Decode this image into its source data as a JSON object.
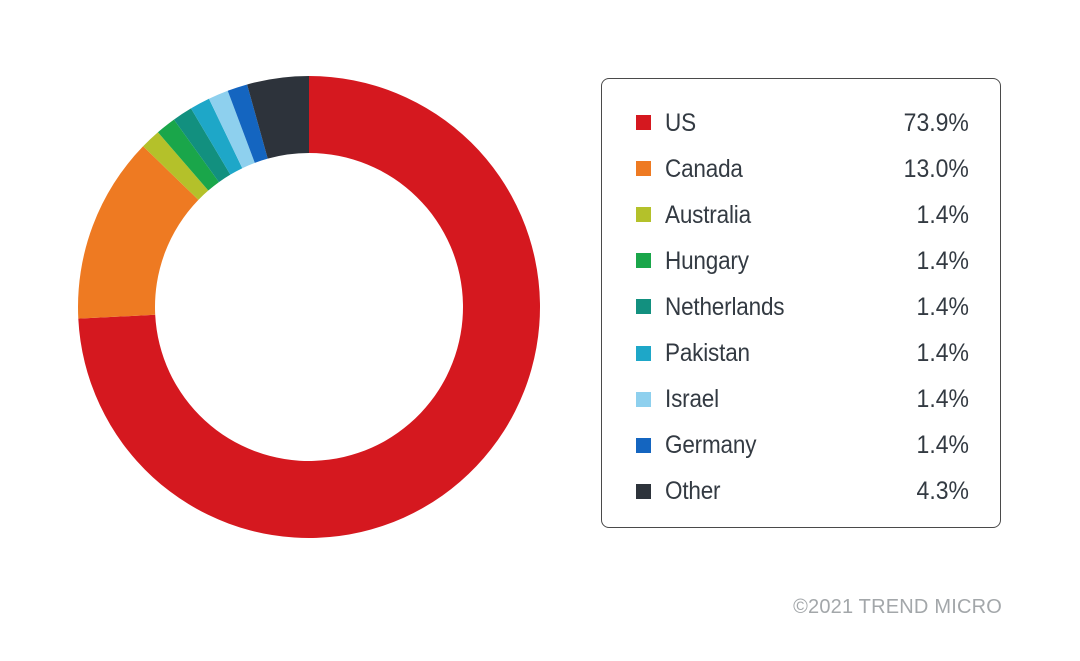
{
  "chart_data": {
    "type": "pie",
    "variant": "donut",
    "categories": [
      "US",
      "Canada",
      "Australia",
      "Hungary",
      "Netherlands",
      "Pakistan",
      "Israel",
      "Germany",
      "Other"
    ],
    "values": [
      73.9,
      13.0,
      1.4,
      1.4,
      1.4,
      1.4,
      1.4,
      1.4,
      4.3
    ],
    "value_labels": [
      "73.9%",
      "13.0%",
      "1.4%",
      "1.4%",
      "1.4%",
      "1.4%",
      "1.4%",
      "1.4%",
      "4.3%"
    ],
    "colors": [
      "#d5181f",
      "#ee7a22",
      "#b4c12a",
      "#1aa64a",
      "#12907f",
      "#1ea7c8",
      "#8ed0ee",
      "#1465c0",
      "#2d333b"
    ],
    "legend_position": "right"
  },
  "credit": "©2021 TREND MICRO"
}
